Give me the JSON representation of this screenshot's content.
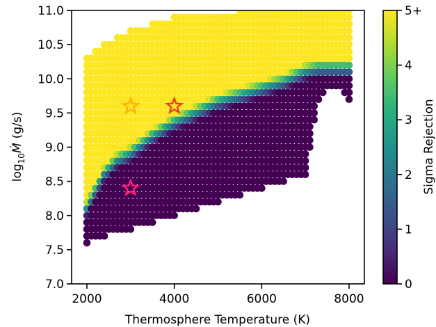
{
  "chart_data": {
    "type": "scatter",
    "title": "",
    "xlabel": "Thermosphere Temperature (K)",
    "ylabel": {
      "prefix": "log",
      "subscript": "10",
      "symbol": "Ṁ",
      "unit": "(g/s)"
    },
    "xlim": [
      1650,
      8350
    ],
    "ylim": [
      7.0,
      11.0
    ],
    "x_ticks": [
      {
        "value": 2000,
        "label": "2000"
      },
      {
        "value": 4000,
        "label": "4000"
      },
      {
        "value": 6000,
        "label": "6000"
      },
      {
        "value": 8000,
        "label": "8000"
      }
    ],
    "y_ticks": [
      {
        "value": 7.0,
        "label": "7.0"
      },
      {
        "value": 7.5,
        "label": "7.5"
      },
      {
        "value": 8.0,
        "label": "8.0"
      },
      {
        "value": 8.5,
        "label": "8.5"
      },
      {
        "value": 9.0,
        "label": "9.0"
      },
      {
        "value": 9.5,
        "label": "9.5"
      },
      {
        "value": 10.0,
        "label": "10.0"
      },
      {
        "value": 10.5,
        "label": "10.5"
      },
      {
        "value": 11.0,
        "label": "11.0"
      }
    ],
    "grid": false,
    "grid_x_range": [
      2000,
      8000
    ],
    "grid_x_step": 100,
    "grid_y_step": 0.1,
    "boundaries": {
      "x": [
        2000,
        2200,
        2400,
        2700,
        3000,
        3500,
        4000,
        4500,
        5000,
        5500,
        6000,
        6500,
        7000,
        7300,
        7500,
        7800,
        8000
      ],
      "y_min": [
        7.6,
        7.7,
        7.7,
        7.8,
        7.8,
        7.9,
        8.0,
        8.1,
        8.2,
        8.3,
        8.4,
        8.5,
        8.6,
        9.7,
        9.9,
        9.9,
        9.7
      ],
      "y_max": [
        10.3,
        10.4,
        10.5,
        10.6,
        10.7,
        10.8,
        10.9,
        10.9,
        10.9,
        11.0,
        11.0,
        11.0,
        11.0,
        11.0,
        11.0,
        11.0,
        11.0
      ],
      "transition_y": [
        8.1,
        8.35,
        8.6,
        8.8,
        8.9,
        9.15,
        9.35,
        9.5,
        9.65,
        9.75,
        9.85,
        9.95,
        10.1,
        10.15,
        10.15,
        10.15,
        10.15
      ]
    },
    "transition_width": 0.25,
    "colormap": "viridis",
    "colorbar": {
      "label": "Sigma Rejection",
      "range": [
        0,
        5
      ],
      "ticks": [
        {
          "value": 0,
          "label": "0"
        },
        {
          "value": 1,
          "label": "1"
        },
        {
          "value": 2,
          "label": "2"
        },
        {
          "value": 3,
          "label": "3"
        },
        {
          "value": 4,
          "label": "4"
        },
        {
          "value": 5,
          "label": "5+"
        }
      ]
    },
    "markers": [
      {
        "x": 3000,
        "y": 9.6,
        "color": "#ffb000"
      },
      {
        "x": 4000,
        "y": 9.6,
        "color": "#e8401f"
      },
      {
        "x": 3000,
        "y": 8.4,
        "color": "#ff1f7a"
      }
    ]
  }
}
